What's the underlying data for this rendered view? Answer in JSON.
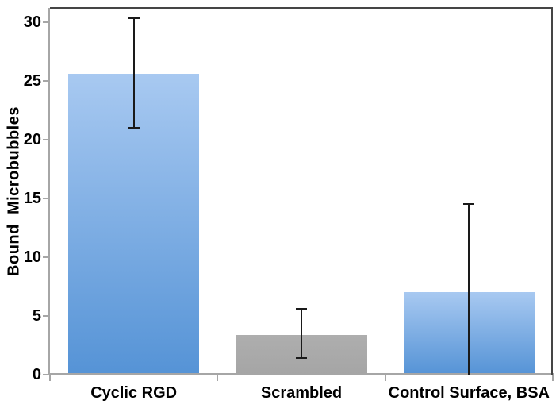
{
  "chart_data": {
    "type": "bar",
    "title": "",
    "xlabel": "",
    "ylabel": "Bound  Microbubbles",
    "categories": [
      "Cyclic RGD",
      "Scrambled",
      "Control Surface, BSA"
    ],
    "values": [
      25.6,
      3.4,
      7.0
    ],
    "error_bars": [
      {
        "low": 21.0,
        "high": 30.3,
        "cap_low": true,
        "cap_high": true
      },
      {
        "low": 1.4,
        "high": 5.6,
        "cap_low": true,
        "cap_high": true
      },
      {
        "low": 0.0,
        "high": 14.5,
        "cap_low": false,
        "cap_high": true
      }
    ],
    "bar_colors": [
      "blue",
      "gray",
      "blue"
    ],
    "yticks": [
      0,
      5,
      10,
      15,
      20,
      25,
      30
    ],
    "ylim": [
      0,
      31.2
    ],
    "grid": false,
    "legend": "none"
  },
  "colors": {
    "axis": "#a6a6a6",
    "frame": "#454545",
    "error": "#1a1a1a",
    "text": "#000000",
    "bar_gradients": {
      "blue": [
        "#a8c9f1",
        "#5593d6"
      ],
      "gray": [
        "#aeaeae",
        "#a5a5a5"
      ]
    }
  }
}
